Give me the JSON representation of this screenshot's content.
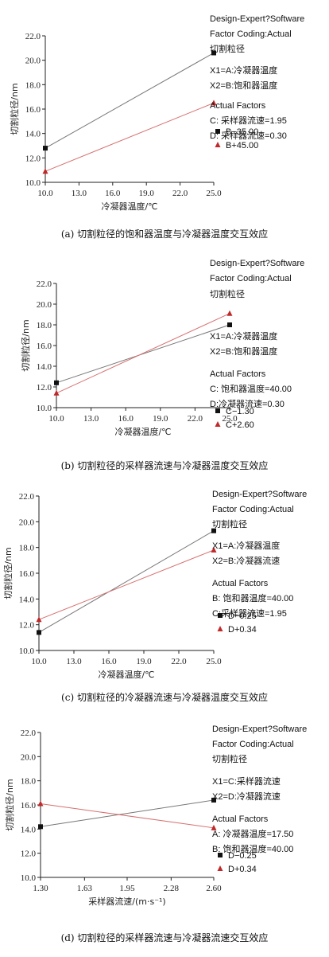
{
  "colors": {
    "black_series": "#111111",
    "red_series": "#c0282a",
    "black_line": "#777777",
    "red_line": "#d77070"
  },
  "chart_data": [
    {
      "type": "line",
      "xlabel": "冷凝器温度/℃",
      "ylabel": "切割粒径/nm",
      "x_ticks": [
        "10.0",
        "13.0",
        "16.0",
        "19.0",
        "22.0",
        "25.0"
      ],
      "y_ticks": [
        "10.0",
        "12.0",
        "14.0",
        "16.0",
        "18.0",
        "20.0",
        "22.0"
      ],
      "xlim": [
        10,
        25
      ],
      "ylim": [
        10,
        22
      ],
      "series": [
        {
          "name": "B−35.00",
          "color": "black",
          "x": [
            10,
            25
          ],
          "y": [
            12.8,
            20.6
          ]
        },
        {
          "name": "B+45.00",
          "color": "red",
          "x": [
            10,
            25
          ],
          "y": [
            10.9,
            16.5
          ]
        }
      ],
      "info": [
        "Design-Expert?Software",
        "Factor Coding:Actual",
        "切割粒径",
        "X1=A:冷凝器温度",
        "X2=B:饱和器温度",
        "Actual Factors",
        "C: 采样器流速=1.95",
        "D: 采样器流速=0.30"
      ],
      "caption": "(a) 切割粒径的饱和器温度与冷凝器温度交互效应"
    },
    {
      "type": "line",
      "xlabel": "冷凝器温度/℃",
      "ylabel": "切割粒径/nm",
      "x_ticks": [
        "10.0",
        "13.0",
        "16.0",
        "19.0",
        "22.0",
        "25.0"
      ],
      "y_ticks": [
        "10.0",
        "12.0",
        "14.0",
        "16.0",
        "18.0",
        "20.0",
        "22.0"
      ],
      "xlim": [
        10,
        25
      ],
      "ylim": [
        10,
        22
      ],
      "series": [
        {
          "name": "C−1.30",
          "color": "black",
          "x": [
            10,
            25
          ],
          "y": [
            12.4,
            18.0
          ]
        },
        {
          "name": "C+2.60",
          "color": "red",
          "x": [
            10,
            25
          ],
          "y": [
            11.4,
            19.1
          ]
        }
      ],
      "info": [
        "Design-Expert?Software",
        "Factor Coding:Actual",
        "切割粒径",
        "X1=A:冷凝器温度",
        "X2=B:饱和器温度",
        "Actual Factors",
        "C: 饱和器温度=40.00",
        "D:冷凝器流速=0.30"
      ],
      "caption": "(b) 切割粒径的采样器流速与冷凝器温度交互效应"
    },
    {
      "type": "line",
      "xlabel": "冷凝器温度/℃",
      "ylabel": "切割粒径/nm",
      "x_ticks": [
        "10.0",
        "13.0",
        "16.0",
        "19.0",
        "22.0",
        "25.0"
      ],
      "y_ticks": [
        "10.0",
        "12.0",
        "14.0",
        "16.0",
        "18.0",
        "20.0",
        "22.0"
      ],
      "xlim": [
        10,
        25
      ],
      "ylim": [
        10,
        22
      ],
      "series": [
        {
          "name": "D−0.25",
          "color": "black",
          "x": [
            10,
            25
          ],
          "y": [
            11.4,
            19.3
          ]
        },
        {
          "name": "D+0.34",
          "color": "red",
          "x": [
            10,
            25
          ],
          "y": [
            12.4,
            17.8
          ]
        }
      ],
      "info": [
        "Design-Expert?Software",
        "Factor Coding:Actual",
        "切割粒径",
        "X1=A:冷凝器温度",
        "X2=B:冷凝器流速",
        "Actual Factors",
        "B: 饱和器温度=40.00",
        "C:采样器流速=1.95"
      ],
      "caption": "(c) 切割粒径的冷凝器流速与冷凝器温度交互效应"
    },
    {
      "type": "line",
      "xlabel": "采样器流速/(m·s⁻¹)",
      "ylabel": "切割粒径/nm",
      "x_ticks": [
        "1.30",
        "1.63",
        "1.95",
        "2.28",
        "2.60"
      ],
      "y_ticks": [
        "10.0",
        "12.0",
        "14.0",
        "16.0",
        "18.0",
        "20.0",
        "22.0"
      ],
      "xlim": [
        1.3,
        2.6
      ],
      "ylim": [
        10,
        22
      ],
      "series": [
        {
          "name": "D−0.25",
          "color": "black",
          "x": [
            1.3,
            2.6
          ],
          "y": [
            14.2,
            16.4
          ]
        },
        {
          "name": "D+0.34",
          "color": "red",
          "x": [
            1.3,
            2.6
          ],
          "y": [
            16.1,
            14.1
          ]
        }
      ],
      "info": [
        "Design-Expert?Software",
        "Factor Coding:Actual",
        "切割粒径",
        "X1=C:采样器流速",
        "X2=D:冷凝器流速",
        "Actual Factors",
        "A: 冷凝器温度=17.50",
        "B: 饱和器温度=40.00"
      ],
      "caption": "(d) 切割粒径的采样器流速与冷凝器流速交互效应"
    }
  ]
}
